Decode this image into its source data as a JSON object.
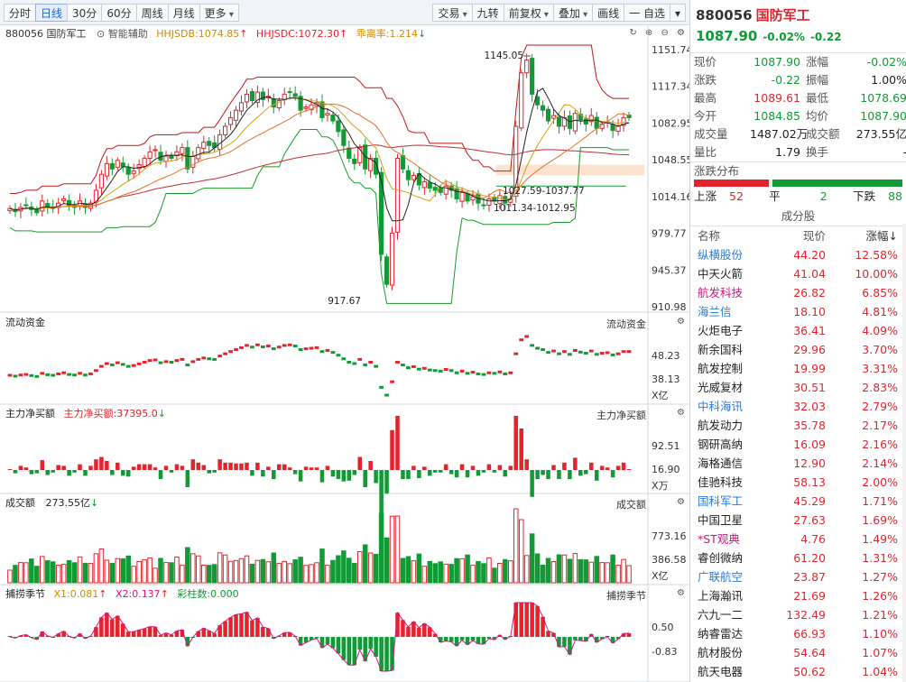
{
  "toolbar": {
    "left": [
      "分时",
      "日线",
      "30分",
      "60分",
      "周线",
      "月线",
      "更多"
    ],
    "right": [
      "交易",
      "九转",
      "前复权",
      "叠加",
      "画线",
      "一 自选"
    ]
  },
  "colors": {
    "up": "#e3242b",
    "down": "#129a37",
    "blue": "#2b7ad9",
    "pink": "#d6137e",
    "ma5": "#222222",
    "ma10": "#d4a017",
    "ma20": "#e8712a",
    "ma60": "#c03030",
    "band_upper": "#c01818",
    "band_lower": "#1a9a2a",
    "zone": "#fbe3cf"
  },
  "main_header": {
    "code": "880056",
    "name": "国防军工",
    "assist": "智能辅助",
    "hhjsdb": "HHJSDB:1074.85",
    "hhjsdc": "HHJSDC:1072.30",
    "bias": "乖离率:1.214"
  },
  "main_axis": [
    "1151.74",
    "1117.34",
    "1082.95",
    "1048.55",
    "1014.16",
    "979.77",
    "945.37",
    "910.98"
  ],
  "main_annot": {
    "high": "1145.05",
    "low": "917.67",
    "range1": "1027.59-1037.77",
    "range2": "1011.34-1012.95"
  },
  "pane2": {
    "title": "流动资金",
    "right_title": "流动资金",
    "axis": [
      "48.23",
      "38.13"
    ],
    "unit": "X亿"
  },
  "pane3": {
    "title": "主力净买额",
    "value": "主力净买额:37395.0",
    "right_title": "主力净买额",
    "axis": [
      "92.51",
      "16.90"
    ],
    "unit": "X万"
  },
  "pane4": {
    "title": "成交额",
    "value": "273.55亿",
    "right_title": "成交额",
    "axis": [
      "773.16",
      "386.58"
    ],
    "unit": "X亿"
  },
  "pane5": {
    "title": "捕捞季节",
    "x1": "X1:0.081",
    "x2": "X2:0.137",
    "bar": "彩柱数:0.000",
    "right_title": "捕捞季节",
    "axis": [
      "0.50",
      "-0.83"
    ]
  },
  "quote": {
    "code": "880056",
    "name": "国防军工",
    "price": "1087.90",
    "change_pct": "-0.02%",
    "change": "-0.22",
    "rows": [
      [
        "现价",
        "1087.90",
        "涨幅",
        "-0.02%"
      ],
      [
        "涨跌",
        "-0.22",
        "振幅",
        "1.00%"
      ],
      [
        "最高",
        "1089.61",
        "最低",
        "1078.69"
      ],
      [
        "今开",
        "1084.85",
        "均价",
        "1087.90"
      ],
      [
        "成交量",
        "1487.02万",
        "成交额",
        "273.55亿"
      ],
      [
        "量比",
        "1.79",
        "换手",
        "-"
      ]
    ],
    "dist_title": "涨跌分布",
    "up_label": "上涨",
    "up": "52",
    "flat_label": "平",
    "flat": "2",
    "down_label": "下跌",
    "down": "88"
  },
  "constituents": {
    "title": "成分股",
    "headers": [
      "名称",
      "现价",
      "涨幅↓"
    ],
    "rows": [
      [
        "纵横股份",
        "44.20",
        "12.58%",
        "blue"
      ],
      [
        "中天火箭",
        "41.04",
        "10.00%",
        "blk"
      ],
      [
        "航发科技",
        "26.82",
        "6.85%",
        "pink"
      ],
      [
        "海兰信",
        "18.10",
        "4.81%",
        "blue"
      ],
      [
        "火炬电子",
        "36.41",
        "4.09%",
        "blk"
      ],
      [
        "新余国科",
        "29.96",
        "3.70%",
        "blk"
      ],
      [
        "航发控制",
        "19.99",
        "3.31%",
        "blk"
      ],
      [
        "光威复材",
        "30.51",
        "2.83%",
        "blk"
      ],
      [
        "中科海讯",
        "32.03",
        "2.79%",
        "blue"
      ],
      [
        "航发动力",
        "35.78",
        "2.17%",
        "blk"
      ],
      [
        "钢研高纳",
        "16.09",
        "2.16%",
        "blk"
      ],
      [
        "海格通信",
        "12.90",
        "2.14%",
        "blk"
      ],
      [
        "佳驰科技",
        "58.13",
        "2.00%",
        "blk"
      ],
      [
        "国科军工",
        "45.29",
        "1.71%",
        "blue"
      ],
      [
        "中国卫星",
        "27.63",
        "1.69%",
        "blk"
      ],
      [
        "*ST观典",
        "4.76",
        "1.49%",
        "pink"
      ],
      [
        "睿创微纳",
        "61.20",
        "1.31%",
        "blk"
      ],
      [
        "广联航空",
        "23.87",
        "1.27%",
        "blue"
      ],
      [
        "上海瀚讯",
        "21.69",
        "1.26%",
        "blk"
      ],
      [
        "六九一二",
        "132.49",
        "1.21%",
        "blk"
      ],
      [
        "纳睿雷达",
        "66.93",
        "1.10%",
        "blk"
      ],
      [
        "航材股份",
        "54.64",
        "1.07%",
        "blk"
      ],
      [
        "航天电器",
        "50.62",
        "1.04%",
        "blk"
      ]
    ]
  },
  "chart_data": {
    "type": "candlestick",
    "title": "880056 国防军工 日线",
    "y_range": [
      910.98,
      1151.74
    ],
    "annotations": {
      "high": 1145.05,
      "low": 917.67
    },
    "closes": [
      1003,
      1000,
      1004,
      1006,
      1002,
      999,
      1010,
      1005,
      1003,
      1008,
      1012,
      1006,
      1004,
      1010,
      1004,
      1008,
      1020,
      1035,
      1045,
      1040,
      1048,
      1042,
      1035,
      1038,
      1044,
      1050,
      1056,
      1058,
      1048,
      1052,
      1050,
      1056,
      1060,
      1040,
      1052,
      1060,
      1065,
      1062,
      1060,
      1072,
      1080,
      1088,
      1095,
      1102,
      1110,
      1104,
      1112,
      1105,
      1108,
      1098,
      1104,
      1110,
      1112,
      1108,
      1095,
      1098,
      1100,
      1102,
      1088,
      1092,
      1085,
      1075,
      1062,
      1050,
      1045,
      1060,
      1040,
      1050,
      1035,
      960,
      932,
      980,
      1050,
      1040,
      1030,
      1034,
      1025,
      1028,
      1022,
      1020,
      1018,
      1024,
      1020,
      1012,
      1018,
      1010,
      1014,
      1008,
      1006,
      1012,
      1010,
      1015,
      1008,
      1012,
      1080,
      1130,
      1142,
      1110,
      1100,
      1095,
      1085,
      1090,
      1080,
      1088,
      1078,
      1092,
      1086,
      1082,
      1090,
      1078,
      1082,
      1084,
      1076,
      1080,
      1088,
      1088
    ]
  }
}
